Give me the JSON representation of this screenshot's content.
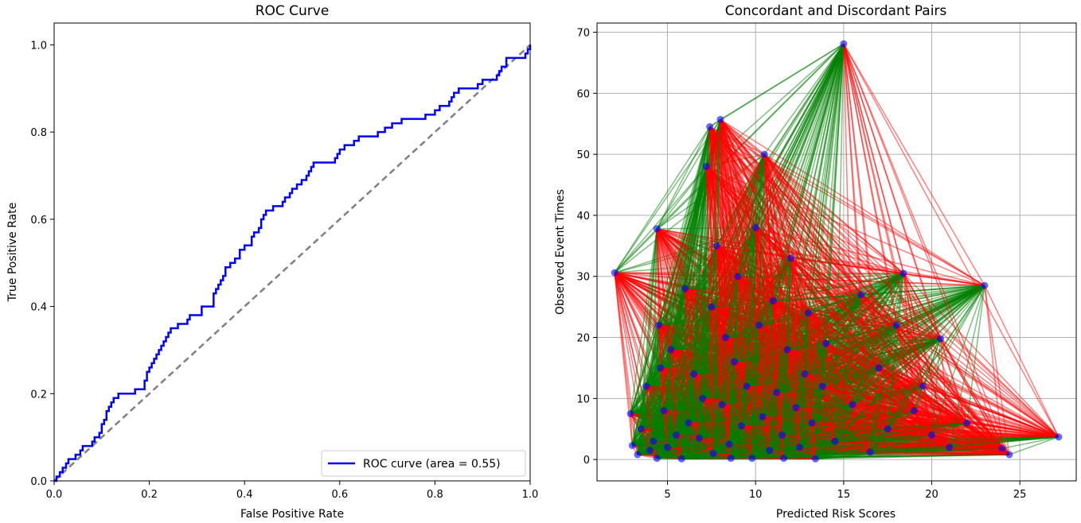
{
  "chart_data": [
    {
      "type": "line",
      "title": "ROC Curve",
      "xlabel": "False Positive Rate",
      "ylabel": "True Positive Rate",
      "xlim": [
        0.0,
        1.0
      ],
      "ylim": [
        0.0,
        1.05
      ],
      "xticks": [
        "0.0",
        "0.2",
        "0.4",
        "0.6",
        "0.8",
        "1.0"
      ],
      "yticks": [
        "0.0",
        "0.2",
        "0.4",
        "0.6",
        "0.8",
        "1.0"
      ],
      "grid": false,
      "legend": {
        "placement": "lower-right"
      },
      "series": [
        {
          "name": "ROC curve (area = 0.55)",
          "color": "#0000ff",
          "style": "step",
          "x": [
            0.0,
            0.005,
            0.012,
            0.018,
            0.025,
            0.03,
            0.04,
            0.045,
            0.055,
            0.06,
            0.08,
            0.085,
            0.095,
            0.1,
            0.105,
            0.11,
            0.115,
            0.12,
            0.125,
            0.13,
            0.135,
            0.15,
            0.17,
            0.19,
            0.195,
            0.2,
            0.205,
            0.21,
            0.215,
            0.22,
            0.225,
            0.23,
            0.235,
            0.24,
            0.245,
            0.25,
            0.26,
            0.28,
            0.285,
            0.3,
            0.31,
            0.335,
            0.34,
            0.345,
            0.35,
            0.355,
            0.36,
            0.37,
            0.38,
            0.39,
            0.4,
            0.415,
            0.42,
            0.43,
            0.435,
            0.44,
            0.445,
            0.46,
            0.48,
            0.485,
            0.495,
            0.5,
            0.51,
            0.52,
            0.53,
            0.535,
            0.54,
            0.545,
            0.55,
            0.59,
            0.595,
            0.6,
            0.61,
            0.63,
            0.64,
            0.68,
            0.695,
            0.71,
            0.73,
            0.78,
            0.795,
            0.8,
            0.81,
            0.83,
            0.835,
            0.84,
            0.85,
            0.89,
            0.9,
            0.93,
            0.935,
            0.94,
            0.95,
            0.99,
            0.995,
            1.0
          ],
          "y": [
            0.0,
            0.01,
            0.02,
            0.03,
            0.04,
            0.05,
            0.05,
            0.06,
            0.07,
            0.08,
            0.09,
            0.1,
            0.11,
            0.13,
            0.14,
            0.16,
            0.17,
            0.18,
            0.19,
            0.19,
            0.2,
            0.2,
            0.21,
            0.23,
            0.25,
            0.26,
            0.27,
            0.28,
            0.29,
            0.3,
            0.31,
            0.32,
            0.33,
            0.34,
            0.35,
            0.35,
            0.36,
            0.37,
            0.38,
            0.38,
            0.4,
            0.43,
            0.44,
            0.45,
            0.46,
            0.47,
            0.49,
            0.5,
            0.51,
            0.53,
            0.54,
            0.56,
            0.57,
            0.58,
            0.6,
            0.61,
            0.62,
            0.63,
            0.64,
            0.65,
            0.66,
            0.67,
            0.68,
            0.69,
            0.7,
            0.71,
            0.72,
            0.73,
            0.73,
            0.74,
            0.75,
            0.76,
            0.77,
            0.78,
            0.79,
            0.8,
            0.81,
            0.82,
            0.83,
            0.84,
            0.84,
            0.85,
            0.86,
            0.87,
            0.88,
            0.89,
            0.9,
            0.91,
            0.92,
            0.93,
            0.94,
            0.95,
            0.97,
            0.98,
            0.99,
            1.0
          ]
        },
        {
          "color": "#808080",
          "style": "dashed",
          "x": [
            0.0,
            1.0
          ],
          "y": [
            0.0,
            1.0
          ]
        }
      ]
    },
    {
      "type": "scatter",
      "title": "Concordant and Discordant Pairs",
      "xlabel": "Predicted Risk Scores",
      "ylabel": "Observed Event Times",
      "xlim": [
        1.0,
        28.2
      ],
      "ylim": [
        -3.5,
        71.5
      ],
      "xticks": [
        5,
        10,
        15,
        20,
        25
      ],
      "yticks": [
        0,
        10,
        20,
        30,
        40,
        50,
        60,
        70
      ],
      "grid": true,
      "point_color": "#0000ff",
      "concordant_color": "#008000",
      "discordant_color": "#ff0000",
      "x": [
        2.0,
        2.9,
        3.0,
        3.3,
        3.5,
        3.8,
        4.0,
        4.2,
        4.4,
        4.4,
        4.5,
        4.6,
        4.8,
        5.0,
        5.2,
        5.5,
        5.8,
        6.0,
        6.2,
        6.5,
        6.8,
        7.0,
        7.2,
        7.4,
        7.5,
        7.6,
        7.8,
        8.0,
        8.1,
        8.3,
        8.5,
        8.6,
        8.8,
        9.0,
        9.2,
        9.5,
        9.8,
        10.0,
        10.2,
        10.4,
        10.5,
        10.8,
        11.0,
        11.2,
        11.5,
        11.6,
        11.8,
        12.0,
        12.3,
        12.5,
        12.8,
        13.0,
        13.2,
        13.4,
        13.8,
        14.0,
        14.5,
        15.0,
        15.5,
        16.0,
        16.5,
        17.0,
        17.5,
        18.0,
        18.4,
        19.0,
        19.5,
        20.0,
        20.5,
        21.0,
        22.0,
        23.0,
        24.0,
        24.4,
        27.2
      ],
      "y": [
        30.6,
        7.5,
        2.3,
        0.8,
        5.0,
        12.0,
        1.5,
        3.0,
        0.2,
        37.8,
        22.0,
        15.0,
        8.0,
        2.0,
        18.0,
        4.0,
        0.1,
        28.0,
        6.0,
        14.0,
        3.5,
        10.0,
        48.0,
        54.5,
        25.0,
        1.0,
        35.0,
        55.7,
        9.0,
        20.0,
        2.5,
        0.2,
        16.0,
        30.0,
        5.5,
        12.0,
        0.2,
        38.0,
        22.0,
        7.0,
        50.0,
        1.5,
        26.0,
        11.0,
        4.0,
        0.2,
        18.0,
        33.0,
        8.5,
        2.0,
        14.0,
        24.0,
        6.0,
        0.1,
        12.0,
        19.0,
        3.0,
        68.1,
        9.0,
        27.0,
        1.2,
        15.0,
        5.0,
        22.0,
        30.5,
        8.0,
        12.0,
        4.0,
        19.8,
        2.0,
        6.0,
        28.5,
        1.8,
        0.8,
        3.7
      ]
    }
  ]
}
